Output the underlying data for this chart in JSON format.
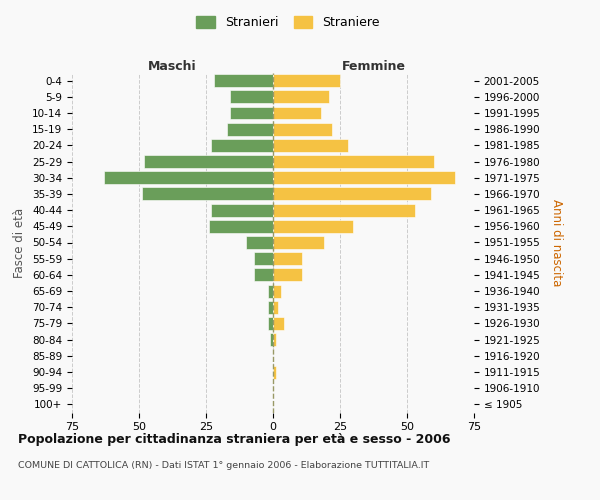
{
  "age_groups": [
    "100+",
    "95-99",
    "90-94",
    "85-89",
    "80-84",
    "75-79",
    "70-74",
    "65-69",
    "60-64",
    "55-59",
    "50-54",
    "45-49",
    "40-44",
    "35-39",
    "30-34",
    "25-29",
    "20-24",
    "15-19",
    "10-14",
    "5-9",
    "0-4"
  ],
  "birth_years": [
    "≤ 1905",
    "1906-1910",
    "1911-1915",
    "1916-1920",
    "1921-1925",
    "1926-1930",
    "1931-1935",
    "1936-1940",
    "1941-1945",
    "1946-1950",
    "1951-1955",
    "1956-1960",
    "1961-1965",
    "1966-1970",
    "1971-1975",
    "1976-1980",
    "1981-1985",
    "1986-1990",
    "1991-1995",
    "1996-2000",
    "2001-2005"
  ],
  "males": [
    0,
    0,
    0,
    0,
    1,
    2,
    2,
    2,
    7,
    7,
    10,
    24,
    23,
    49,
    63,
    48,
    23,
    17,
    16,
    16,
    22
  ],
  "females": [
    0,
    0,
    1,
    0,
    1,
    4,
    2,
    3,
    11,
    11,
    19,
    30,
    53,
    59,
    68,
    60,
    28,
    22,
    18,
    21,
    25
  ],
  "male_color": "#6a9e5a",
  "female_color": "#f5c243",
  "background_color": "#f9f9f9",
  "grid_color": "#cccccc",
  "title": "Popolazione per cittadinanza straniera per età e sesso - 2006",
  "subtitle": "COMUNE DI CATTOLICA (RN) - Dati ISTAT 1° gennaio 2006 - Elaborazione TUTTITALIA.IT",
  "xlabel_left": "Maschi",
  "xlabel_right": "Femmine",
  "ylabel_left": "Fasce di età",
  "ylabel_right": "Anni di nascita",
  "xlim": 75,
  "xticks": [
    75,
    50,
    25,
    0,
    25,
    50,
    75
  ],
  "legend_labels": [
    "Stranieri",
    "Straniere"
  ]
}
